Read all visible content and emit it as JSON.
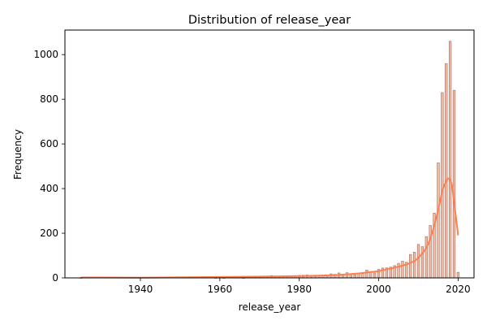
{
  "chart_data": {
    "type": "bar",
    "title": "Distribution of release_year",
    "xlabel": "release_year",
    "ylabel": "Frequency",
    "xlim": [
      1921,
      2024
    ],
    "ylim": [
      0,
      1110
    ],
    "x_ticks": [
      1940,
      1960,
      1980,
      2000,
      2020
    ],
    "y_ticks": [
      0,
      200,
      400,
      600,
      800,
      1000
    ],
    "grid": false,
    "colors": {
      "bar_fill": "#f3b9a3",
      "bar_edge": "#a07060",
      "kde_line": "#ff7f50"
    },
    "bars": [
      {
        "x": 1925,
        "y": 1
      },
      {
        "x": 1942,
        "y": 2
      },
      {
        "x": 1944,
        "y": 2
      },
      {
        "x": 1945,
        "y": 3
      },
      {
        "x": 1946,
        "y": 2
      },
      {
        "x": 1947,
        "y": 3
      },
      {
        "x": 1954,
        "y": 2
      },
      {
        "x": 1955,
        "y": 3
      },
      {
        "x": 1956,
        "y": 2
      },
      {
        "x": 1958,
        "y": 3
      },
      {
        "x": 1959,
        "y": 1
      },
      {
        "x": 1960,
        "y": 4
      },
      {
        "x": 1961,
        "y": 1
      },
      {
        "x": 1962,
        "y": 3
      },
      {
        "x": 1963,
        "y": 2
      },
      {
        "x": 1964,
        "y": 2
      },
      {
        "x": 1965,
        "y": 2
      },
      {
        "x": 1966,
        "y": 1
      },
      {
        "x": 1967,
        "y": 5
      },
      {
        "x": 1968,
        "y": 3
      },
      {
        "x": 1969,
        "y": 2
      },
      {
        "x": 1970,
        "y": 2
      },
      {
        "x": 1971,
        "y": 5
      },
      {
        "x": 1972,
        "y": 4
      },
      {
        "x": 1973,
        "y": 10
      },
      {
        "x": 1974,
        "y": 7
      },
      {
        "x": 1975,
        "y": 7
      },
      {
        "x": 1976,
        "y": 9
      },
      {
        "x": 1977,
        "y": 7
      },
      {
        "x": 1978,
        "y": 7
      },
      {
        "x": 1979,
        "y": 10
      },
      {
        "x": 1980,
        "y": 11
      },
      {
        "x": 1981,
        "y": 12
      },
      {
        "x": 1982,
        "y": 13
      },
      {
        "x": 1983,
        "y": 11
      },
      {
        "x": 1984,
        "y": 12
      },
      {
        "x": 1985,
        "y": 10
      },
      {
        "x": 1986,
        "y": 13
      },
      {
        "x": 1987,
        "y": 8
      },
      {
        "x": 1988,
        "y": 18
      },
      {
        "x": 1989,
        "y": 16
      },
      {
        "x": 1990,
        "y": 22
      },
      {
        "x": 1991,
        "y": 17
      },
      {
        "x": 1992,
        "y": 23
      },
      {
        "x": 1993,
        "y": 18
      },
      {
        "x": 1994,
        "y": 14
      },
      {
        "x": 1995,
        "y": 20
      },
      {
        "x": 1996,
        "y": 22
      },
      {
        "x": 1997,
        "y": 35
      },
      {
        "x": 1998,
        "y": 28
      },
      {
        "x": 1999,
        "y": 22
      },
      {
        "x": 2000,
        "y": 38
      },
      {
        "x": 2001,
        "y": 44
      },
      {
        "x": 2002,
        "y": 45
      },
      {
        "x": 2003,
        "y": 48
      },
      {
        "x": 2004,
        "y": 55
      },
      {
        "x": 2005,
        "y": 65
      },
      {
        "x": 2006,
        "y": 75
      },
      {
        "x": 2007,
        "y": 70
      },
      {
        "x": 2008,
        "y": 105
      },
      {
        "x": 2009,
        "y": 115
      },
      {
        "x": 2010,
        "y": 150
      },
      {
        "x": 2011,
        "y": 140
      },
      {
        "x": 2012,
        "y": 185
      },
      {
        "x": 2013,
        "y": 235
      },
      {
        "x": 2014,
        "y": 290
      },
      {
        "x": 2015,
        "y": 515
      },
      {
        "x": 2016,
        "y": 830
      },
      {
        "x": 2017,
        "y": 960
      },
      {
        "x": 2018,
        "y": 1060
      },
      {
        "x": 2019,
        "y": 840
      },
      {
        "x": 2020,
        "y": 25
      }
    ],
    "kde": {
      "x": [
        1925,
        1940,
        1960,
        1975,
        1985,
        1990,
        1995,
        2000,
        2003,
        2005,
        2007,
        2009,
        2010,
        2011,
        2012,
        2013,
        2014,
        2015,
        2016,
        2017,
        2017.5,
        2018,
        2018.5,
        2019,
        2019.5,
        2020
      ],
      "y": [
        2,
        1,
        4,
        7,
        10,
        13,
        20,
        30,
        42,
        50,
        60,
        75,
        90,
        110,
        135,
        175,
        235,
        305,
        390,
        435,
        445,
        442,
        410,
        335,
        265,
        190
      ]
    }
  }
}
